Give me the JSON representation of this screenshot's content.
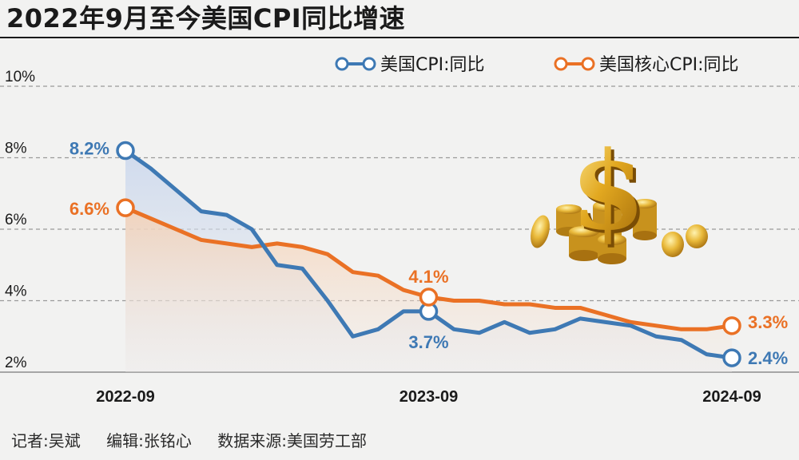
{
  "title": "2022年9月至今美国CPI同比增速",
  "footer": {
    "reporter": "记者:吴斌",
    "editor": "编辑:张铭心",
    "source": "数据来源:美国劳工部"
  },
  "colors": {
    "cpi": "#3e79b4",
    "core": "#ea7125",
    "grid": "#9a9a9a",
    "text": "#1a1a1a"
  },
  "chart_data": {
    "type": "line",
    "title": "2022年9月至今美国CPI同比增速",
    "ylim": [
      2,
      10
    ],
    "yticks": [
      2,
      4,
      6,
      8,
      10
    ],
    "ytick_labels": [
      "2%",
      "4%",
      "6%",
      "8%",
      "10%"
    ],
    "grid": "horizontal-dashed",
    "legend": "top-right",
    "x": [
      "2022-09",
      "2022-10",
      "2022-11",
      "2022-12",
      "2023-01",
      "2023-02",
      "2023-03",
      "2023-04",
      "2023-05",
      "2023-06",
      "2023-07",
      "2023-08",
      "2023-09",
      "2023-10",
      "2023-11",
      "2023-12",
      "2024-01",
      "2024-02",
      "2024-03",
      "2024-04",
      "2024-05",
      "2024-06",
      "2024-07",
      "2024-08",
      "2024-09"
    ],
    "xtick_labels": [
      "2022-09",
      "2023-09",
      "2024-09"
    ],
    "series": [
      {
        "name": "美国CPI:同比",
        "color": "#3e79b4",
        "values": [
          8.2,
          7.7,
          7.1,
          6.5,
          6.4,
          6.0,
          5.0,
          4.9,
          4.0,
          3.0,
          3.2,
          3.7,
          3.7,
          3.2,
          3.1,
          3.4,
          3.1,
          3.2,
          3.5,
          3.4,
          3.3,
          3.0,
          2.9,
          2.5,
          2.4
        ],
        "annotations": [
          {
            "index": 0,
            "label": "8.2%"
          },
          {
            "index": 12,
            "label": "3.7%"
          },
          {
            "index": 24,
            "label": "2.4%"
          }
        ]
      },
      {
        "name": "美国核心CPI:同比",
        "color": "#ea7125",
        "values": [
          6.6,
          6.3,
          6.0,
          5.7,
          5.6,
          5.5,
          5.6,
          5.5,
          5.3,
          4.8,
          4.7,
          4.3,
          4.1,
          4.0,
          4.0,
          3.9,
          3.9,
          3.8,
          3.8,
          3.6,
          3.4,
          3.3,
          3.2,
          3.2,
          3.3
        ],
        "annotations": [
          {
            "index": 0,
            "label": "6.6%"
          },
          {
            "index": 12,
            "label": "4.1%"
          },
          {
            "index": 24,
            "label": "3.3%"
          }
        ]
      }
    ]
  }
}
